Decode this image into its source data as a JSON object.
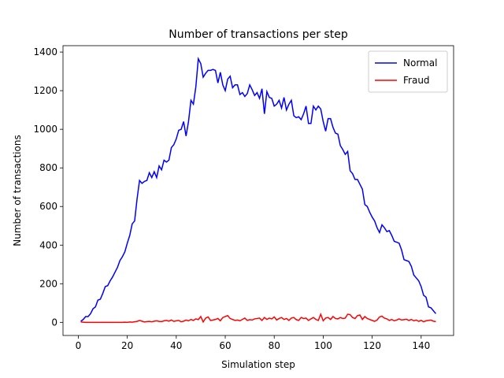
{
  "chart_data": {
    "type": "line",
    "title": "Number of transactions per step",
    "x_label": "Simulation step",
    "y_label": "Number of transactions",
    "x": [
      1,
      2,
      3,
      4,
      5,
      6,
      7,
      8,
      9,
      10,
      11,
      12,
      13,
      14,
      15,
      16,
      17,
      18,
      19,
      20,
      21,
      22,
      23,
      24,
      25,
      26,
      27,
      28,
      29,
      30,
      31,
      32,
      33,
      34,
      35,
      36,
      37,
      38,
      39,
      40,
      41,
      42,
      43,
      44,
      45,
      46,
      47,
      48,
      49,
      50,
      51,
      52,
      53,
      54,
      55,
      56,
      57,
      58,
      59,
      60,
      61,
      62,
      63,
      64,
      65,
      66,
      67,
      68,
      69,
      70,
      71,
      72,
      73,
      74,
      75,
      76,
      77,
      78,
      79,
      80,
      81,
      82,
      83,
      84,
      85,
      86,
      87,
      88,
      89,
      90,
      91,
      92,
      93,
      94,
      95,
      96,
      97,
      98,
      99,
      100,
      101,
      102,
      103,
      104,
      105,
      106,
      107,
      108,
      109,
      110,
      111,
      112,
      113,
      114,
      115,
      116,
      117,
      118,
      119,
      120,
      121,
      122,
      123,
      124,
      125,
      126,
      127,
      128,
      129,
      130,
      131,
      132,
      133,
      134,
      135,
      136,
      137,
      138,
      139,
      140,
      141,
      142,
      143,
      144,
      145,
      146
    ],
    "series": [
      {
        "name": "Normal",
        "color": "#0000ff",
        "values": [
          5,
          15,
          30,
          30,
          45,
          70,
          80,
          115,
          120,
          150,
          185,
          190,
          215,
          235,
          260,
          285,
          320,
          340,
          365,
          410,
          450,
          510,
          525,
          640,
          735,
          720,
          730,
          735,
          775,
          750,
          780,
          750,
          810,
          790,
          840,
          830,
          840,
          905,
          920,
          950,
          995,
          1000,
          1040,
          965,
          1040,
          1150,
          1130,
          1220,
          1365,
          1340,
          1270,
          1290,
          1305,
          1305,
          1310,
          1305,
          1240,
          1295,
          1230,
          1200,
          1260,
          1275,
          1215,
          1230,
          1230,
          1180,
          1190,
          1170,
          1185,
          1230,
          1205,
          1175,
          1190,
          1160,
          1210,
          1080,
          1195,
          1165,
          1160,
          1120,
          1130,
          1150,
          1110,
          1165,
          1100,
          1130,
          1150,
          1070,
          1060,
          1065,
          1050,
          1080,
          1120,
          1030,
          1030,
          1120,
          1100,
          1120,
          1105,
          1040,
          990,
          1055,
          1055,
          1010,
          980,
          975,
          915,
          895,
          870,
          885,
          785,
          770,
          740,
          740,
          715,
          690,
          610,
          600,
          570,
          545,
          525,
          490,
          465,
          505,
          490,
          470,
          475,
          450,
          420,
          415,
          410,
          375,
          325,
          320,
          315,
          290,
          245,
          230,
          215,
          185,
          140,
          130,
          80,
          75,
          60,
          45
        ]
      },
      {
        "name": "Fraud",
        "color": "#ff0000",
        "values": [
          2,
          1,
          0,
          0,
          0,
          0,
          0,
          0,
          0,
          0,
          0,
          0,
          0,
          0,
          0,
          0,
          0,
          0,
          1,
          0,
          2,
          1,
          3,
          5,
          10,
          6,
          2,
          4,
          5,
          3,
          6,
          8,
          5,
          4,
          8,
          10,
          6,
          12,
          5,
          8,
          10,
          3,
          6,
          12,
          8,
          15,
          10,
          18,
          14,
          30,
          2,
          22,
          28,
          10,
          12,
          15,
          20,
          8,
          25,
          30,
          35,
          20,
          15,
          10,
          12,
          8,
          15,
          22,
          10,
          14,
          12,
          18,
          20,
          22,
          10,
          25,
          15,
          22,
          18,
          28,
          12,
          20,
          25,
          15,
          20,
          10,
          22,
          25,
          14,
          10,
          25,
          20,
          22,
          10,
          18,
          25,
          15,
          10,
          42,
          8,
          22,
          25,
          15,
          30,
          20,
          18,
          25,
          20,
          22,
          42,
          40,
          25,
          20,
          35,
          38,
          15,
          30,
          20,
          15,
          10,
          5,
          12,
          28,
          32,
          22,
          18,
          10,
          15,
          8,
          12,
          18,
          12,
          14,
          16,
          10,
          15,
          8,
          12,
          5,
          10,
          3,
          8,
          10,
          12,
          6,
          4
        ]
      }
    ],
    "xlim": [
      -6.25,
      153.25
    ],
    "ylim": [
      -68,
      1433
    ],
    "xticks": [
      0,
      20,
      40,
      60,
      80,
      100,
      120,
      140
    ],
    "yticks": [
      0,
      200,
      400,
      600,
      800,
      1000,
      1200,
      1400
    ],
    "legend": "upper right",
    "grid": false
  }
}
